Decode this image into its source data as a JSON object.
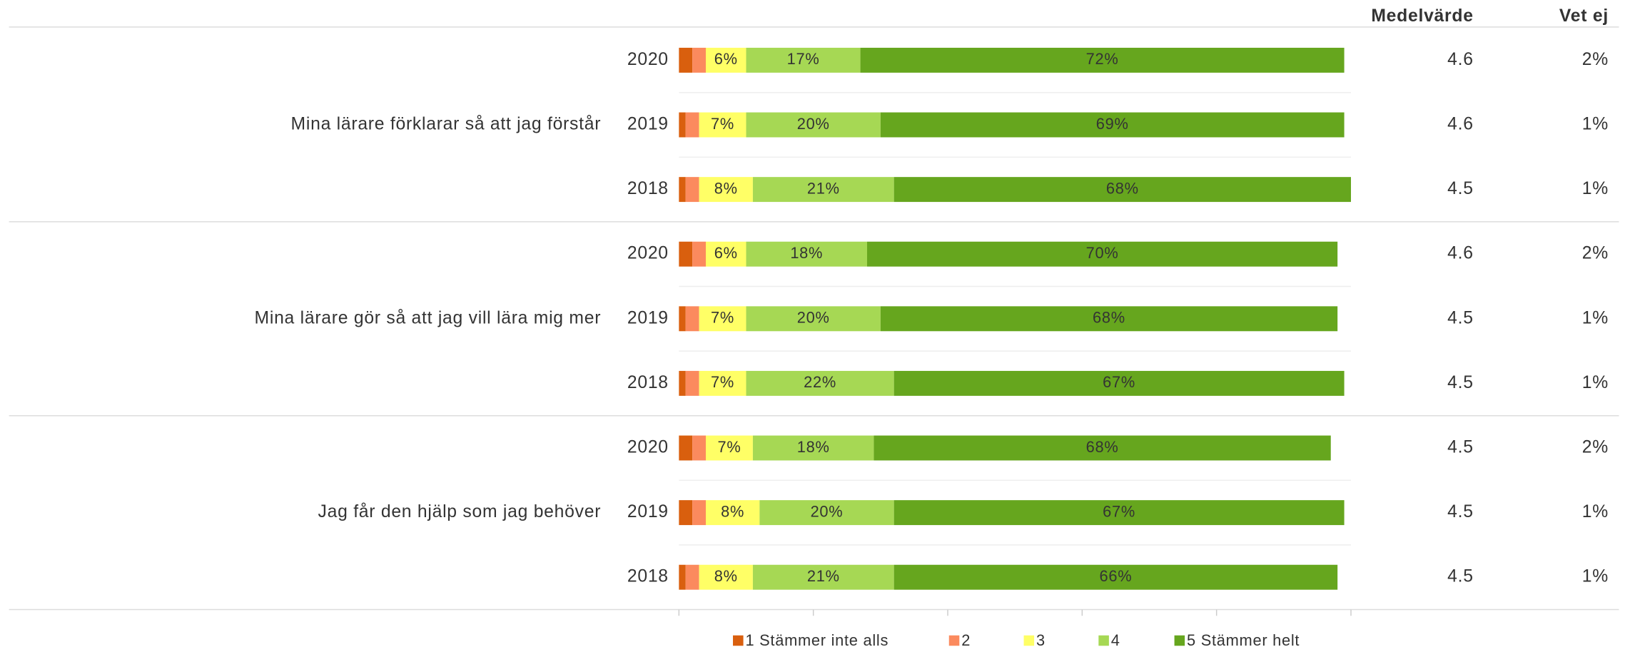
{
  "chart_data": {
    "type": "stacked_bar_horizontal",
    "columns": [
      "Medelvärde",
      "Vet ej"
    ],
    "group_labels": [
      "Mina lärare förklarar så att jag förstår",
      "Mina lärare gör så att jag vill lära mig mer",
      "Jag får den hjälp som jag behöver"
    ],
    "categories": [
      "2020",
      "2019",
      "2018",
      "2020",
      "2019",
      "2018",
      "2020",
      "2019",
      "2018"
    ],
    "series": [
      {
        "name": "1 Stämmer inte alls",
        "color": "#d95f0e",
        "values": [
          2,
          1,
          1,
          2,
          1,
          1,
          2,
          2,
          1
        ]
      },
      {
        "name": "2",
        "color": "#fb8a5e",
        "values": [
          2,
          2,
          2,
          2,
          2,
          2,
          2,
          2,
          2
        ]
      },
      {
        "name": "3",
        "color": "#ffff66",
        "values": [
          6,
          7,
          8,
          6,
          7,
          7,
          7,
          8,
          8
        ],
        "value_labels": [
          "6%",
          "7%",
          "8%",
          "6%",
          "7%",
          "7%",
          "7%",
          "8%",
          "8%"
        ]
      },
      {
        "name": "4",
        "color": "#a6d854",
        "values": [
          17,
          20,
          21,
          18,
          20,
          22,
          18,
          20,
          21
        ],
        "value_labels": [
          "17%",
          "20%",
          "21%",
          "18%",
          "20%",
          "22%",
          "18%",
          "20%",
          "21%"
        ]
      },
      {
        "name": "5 Stämmer helt",
        "color": "#66a61e",
        "values": [
          72,
          69,
          68,
          70,
          68,
          67,
          68,
          67,
          66
        ],
        "value_labels": [
          "72%",
          "69%",
          "68%",
          "70%",
          "68%",
          "67%",
          "68%",
          "67%",
          "66%"
        ]
      }
    ],
    "medelvarde": [
      4.6,
      4.6,
      4.5,
      4.6,
      4.5,
      4.5,
      4.5,
      4.5,
      4.5
    ],
    "vet_ej": [
      2,
      1,
      1,
      2,
      1,
      1,
      2,
      1,
      1
    ],
    "vet_ej_labels": [
      "2%",
      "1%",
      "1%",
      "2%",
      "1%",
      "1%",
      "2%",
      "1%",
      "1%"
    ],
    "xlim": [
      0,
      100
    ],
    "xticks": [
      0,
      20,
      40,
      60,
      80,
      100
    ]
  }
}
